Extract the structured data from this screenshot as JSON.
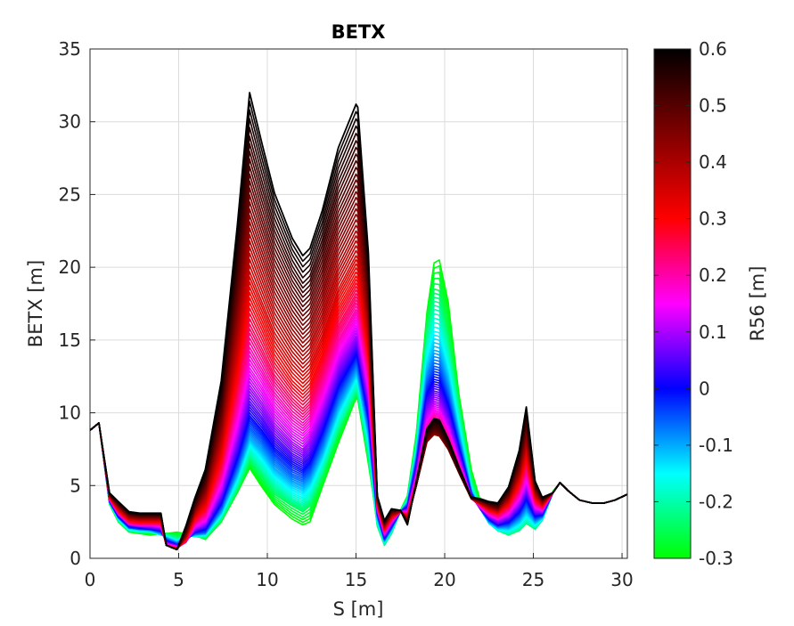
{
  "chart_data": {
    "type": "line",
    "title": "BETX",
    "xlabel": "S [m]",
    "ylabel": "BETX [m]",
    "xlim": [
      0,
      30.3
    ],
    "ylim": [
      0,
      35
    ],
    "xticks": [
      0,
      5,
      10,
      15,
      20,
      25,
      30
    ],
    "yticks": [
      0,
      5,
      10,
      15,
      20,
      25,
      30,
      35
    ],
    "grid": true,
    "colorbar": {
      "label": "R56 [m]",
      "range": [
        -0.3,
        0.6
      ],
      "ticks": [
        -0.3,
        -0.2,
        -0.1,
        0,
        0.1,
        0.2,
        0.3,
        0.4,
        0.5,
        0.6
      ],
      "tick_labels": [
        "-0.3",
        "-0.2",
        "-0.1",
        "0",
        "0.1",
        "0.2",
        "0.3",
        "0.4",
        "0.5",
        "0.6"
      ],
      "colormap": [
        "#00ff00",
        "#00ffff",
        "#0000ff",
        "#ff00ff",
        "#ff0000",
        "#800000",
        "#000000"
      ],
      "placement": "right"
    },
    "s_positions": [
      0,
      0.5,
      1.1,
      1.6,
      2.2,
      2.8,
      3.4,
      4.0,
      4.3,
      4.9,
      5.4,
      5.9,
      6.5,
      7.4,
      8.3,
      9.0,
      9.7,
      10.4,
      11.4,
      12.0,
      12.4,
      13.1,
      14.0,
      15.0,
      15.1,
      15.7,
      16.2,
      16.6,
      17.0,
      17.5,
      17.9,
      18.4,
      19.0,
      19.4,
      19.7,
      20.2,
      20.8,
      21.5,
      22.0,
      22.5,
      23.0,
      23.6,
      24.2,
      24.6,
      25.1,
      25.5,
      26.1,
      26.5,
      27.0,
      27.6,
      28.3,
      29.0,
      29.6,
      30.3
    ],
    "series": [
      {
        "r56": -0.3,
        "values": [
          8.8,
          9.3,
          3.7,
          2.5,
          1.8,
          1.7,
          1.6,
          1.7,
          1.7,
          1.8,
          1.7,
          1.6,
          1.3,
          2.5,
          4.5,
          6.2,
          4.9,
          3.7,
          2.7,
          2.3,
          2.5,
          4.9,
          7.9,
          11.0,
          10.9,
          6.5,
          2.6,
          1.1,
          1.7,
          3.3,
          4.3,
          8.6,
          16.9,
          20.3,
          20.5,
          17.6,
          11.3,
          6.1,
          4.0,
          2.6,
          2.0,
          1.7,
          2.0,
          2.6,
          2.1,
          2.8,
          4.6,
          5.2,
          4.6,
          4.0,
          3.8,
          3.8,
          4.0,
          4.4
        ]
      },
      {
        "r56": -0.25,
        "values": [
          8.8,
          9.3,
          3.8,
          2.6,
          1.9,
          1.8,
          1.8,
          1.7,
          1.7,
          1.5,
          1.6,
          1.5,
          1.4,
          2.6,
          4.7,
          6.7,
          5.6,
          4.4,
          3.6,
          3.2,
          3.6,
          5.6,
          8.7,
          11.3,
          11.1,
          6.9,
          2.2,
          0.9,
          1.7,
          3.2,
          4.2,
          8.1,
          15.9,
          18.5,
          18.4,
          15.3,
          10.5,
          5.4,
          3.6,
          2.4,
          1.9,
          1.6,
          1.9,
          2.4,
          2.0,
          2.6,
          4.5,
          5.2,
          4.6,
          4.0,
          3.8,
          3.8,
          4.0,
          4.4
        ]
      },
      {
        "r56": -0.2,
        "values": [
          8.8,
          9.3,
          3.8,
          2.6,
          1.9,
          1.8,
          1.8,
          1.6,
          1.6,
          1.3,
          1.6,
          1.5,
          1.5,
          2.8,
          5.0,
          7.2,
          6.1,
          5.0,
          4.0,
          3.7,
          4.1,
          6.1,
          9.1,
          11.7,
          11.5,
          7.4,
          2.4,
          1.0,
          1.8,
          3.2,
          4.0,
          7.7,
          14.9,
          17.1,
          17.0,
          14.3,
          9.9,
          5.1,
          3.5,
          2.4,
          1.9,
          1.7,
          2.0,
          2.5,
          2.1,
          2.6,
          4.5,
          5.2,
          4.6,
          4.0,
          3.8,
          3.8,
          4.0,
          4.4
        ]
      },
      {
        "r56": -0.15,
        "values": [
          8.8,
          9.3,
          3.8,
          2.7,
          2.0,
          1.9,
          1.9,
          1.6,
          1.5,
          1.2,
          1.5,
          1.6,
          1.6,
          3.0,
          5.4,
          7.8,
          6.8,
          5.6,
          4.6,
          4.3,
          4.8,
          6.7,
          9.8,
          12.3,
          12.1,
          8.1,
          2.6,
          1.1,
          1.9,
          3.2,
          3.9,
          7.4,
          13.8,
          15.6,
          15.5,
          13.1,
          9.1,
          4.8,
          3.4,
          2.4,
          2.0,
          1.9,
          2.3,
          2.9,
          2.3,
          2.7,
          4.5,
          5.2,
          4.6,
          4.0,
          3.8,
          3.8,
          4.0,
          4.4
        ]
      },
      {
        "r56": -0.1,
        "values": [
          8.8,
          9.3,
          3.9,
          2.8,
          2.1,
          2.0,
          1.9,
          1.7,
          1.4,
          1.1,
          1.4,
          1.6,
          1.7,
          3.2,
          5.8,
          8.3,
          7.4,
          6.2,
          5.2,
          4.9,
          5.4,
          7.3,
          10.4,
          12.8,
          12.6,
          8.6,
          2.8,
          1.2,
          2.0,
          3.2,
          3.8,
          7.0,
          12.8,
          14.3,
          14.2,
          12.1,
          8.5,
          4.6,
          3.4,
          2.5,
          2.1,
          2.1,
          2.6,
          3.3,
          2.5,
          2.8,
          4.5,
          5.2,
          4.6,
          4.0,
          3.8,
          3.8,
          4.0,
          4.4
        ]
      },
      {
        "r56": -0.05,
        "values": [
          8.8,
          9.3,
          3.9,
          2.8,
          2.1,
          2.0,
          2.0,
          1.8,
          1.3,
          1.0,
          1.3,
          1.7,
          1.8,
          3.5,
          6.3,
          9.0,
          8.1,
          6.9,
          5.8,
          5.5,
          6.0,
          8.0,
          11.1,
          13.4,
          13.2,
          9.2,
          3.0,
          1.3,
          2.1,
          3.2,
          3.7,
          6.7,
          12.0,
          13.2,
          13.1,
          11.2,
          8.0,
          4.5,
          3.4,
          2.6,
          2.2,
          2.3,
          2.9,
          3.7,
          2.7,
          2.9,
          4.5,
          5.2,
          4.6,
          4.0,
          3.8,
          3.8,
          4.0,
          4.4
        ]
      },
      {
        "r56": 0.0,
        "values": [
          8.8,
          9.3,
          3.9,
          2.9,
          2.2,
          2.1,
          2.0,
          1.9,
          1.2,
          0.9,
          1.2,
          1.8,
          2.0,
          3.8,
          6.9,
          9.8,
          8.8,
          7.6,
          6.5,
          6.1,
          6.6,
          8.7,
          11.8,
          14.0,
          13.8,
          9.8,
          3.1,
          1.4,
          2.2,
          3.2,
          3.5,
          6.4,
          11.3,
          12.3,
          12.2,
          10.5,
          7.6,
          4.4,
          3.4,
          2.7,
          2.3,
          2.5,
          3.2,
          4.1,
          2.9,
          3.0,
          4.5,
          5.2,
          4.6,
          4.0,
          3.8,
          3.8,
          4.0,
          4.4
        ]
      },
      {
        "r56": 0.05,
        "values": [
          8.8,
          9.3,
          4.0,
          3.0,
          2.3,
          2.2,
          2.1,
          2.0,
          1.1,
          0.9,
          1.2,
          1.9,
          2.2,
          4.2,
          7.6,
          10.8,
          9.7,
          8.4,
          7.2,
          6.8,
          7.3,
          9.4,
          12.5,
          14.6,
          14.4,
          10.4,
          3.2,
          1.5,
          2.3,
          3.2,
          3.4,
          6.1,
          10.6,
          11.5,
          11.4,
          9.8,
          7.2,
          4.3,
          3.4,
          2.8,
          2.4,
          2.7,
          3.5,
          4.5,
          3.1,
          3.1,
          4.5,
          5.2,
          4.6,
          4.0,
          3.8,
          3.8,
          4.0,
          4.4
        ]
      },
      {
        "r56": 0.1,
        "values": [
          8.8,
          9.3,
          4.0,
          3.0,
          2.3,
          2.2,
          2.2,
          2.1,
          1.0,
          0.8,
          1.1,
          2.0,
          2.4,
          4.6,
          8.4,
          11.9,
          10.7,
          9.3,
          8.0,
          7.5,
          8.1,
          10.2,
          13.3,
          15.3,
          15.1,
          11.0,
          3.3,
          1.6,
          2.4,
          3.2,
          3.3,
          5.8,
          10.0,
          10.8,
          10.7,
          9.2,
          6.9,
          4.2,
          3.5,
          2.9,
          2.6,
          2.9,
          3.8,
          4.9,
          3.3,
          3.2,
          4.5,
          5.2,
          4.6,
          4.0,
          3.8,
          3.8,
          4.0,
          4.4
        ]
      },
      {
        "r56": 0.15,
        "values": [
          8.8,
          9.3,
          4.0,
          3.1,
          2.4,
          2.3,
          2.3,
          2.2,
          1.0,
          0.8,
          1.1,
          2.2,
          2.6,
          5.1,
          9.3,
          13.1,
          11.8,
          10.3,
          8.9,
          8.4,
          8.9,
          11.0,
          14.1,
          16.2,
          16.0,
          11.7,
          3.4,
          1.7,
          2.5,
          3.2,
          3.2,
          5.6,
          9.4,
          10.2,
          10.1,
          8.8,
          6.6,
          4.2,
          3.5,
          3.0,
          2.7,
          3.1,
          4.1,
          5.4,
          3.5,
          3.3,
          4.5,
          5.2,
          4.6,
          4.0,
          3.8,
          3.8,
          4.0,
          4.4
        ]
      },
      {
        "r56": 0.2,
        "values": [
          8.8,
          9.3,
          4.1,
          3.1,
          2.4,
          2.3,
          2.3,
          2.3,
          0.9,
          0.7,
          1.1,
          2.3,
          2.9,
          5.6,
          10.3,
          14.5,
          13.0,
          11.4,
          9.9,
          9.3,
          9.8,
          11.9,
          15.0,
          17.1,
          16.9,
          12.4,
          3.5,
          1.8,
          2.6,
          3.2,
          3.1,
          5.4,
          9.0,
          9.7,
          9.6,
          8.4,
          6.4,
          4.1,
          3.6,
          3.1,
          2.8,
          3.3,
          4.4,
          5.9,
          3.7,
          3.4,
          4.5,
          5.2,
          4.6,
          4.0,
          3.8,
          3.8,
          4.0,
          4.4
        ]
      },
      {
        "r56": 0.25,
        "values": [
          8.8,
          9.3,
          4.1,
          3.2,
          2.5,
          2.4,
          2.4,
          2.4,
          0.9,
          0.7,
          1.2,
          2.5,
          3.2,
          6.2,
          11.4,
          16.1,
          14.4,
          12.6,
          11.0,
          10.3,
          10.8,
          12.9,
          16.0,
          18.2,
          18.0,
          13.2,
          3.6,
          1.9,
          2.7,
          3.2,
          3.0,
          5.2,
          8.6,
          9.3,
          9.2,
          8.1,
          6.2,
          4.1,
          3.7,
          3.2,
          3.0,
          3.5,
          4.8,
          6.4,
          3.9,
          3.5,
          4.5,
          5.2,
          4.6,
          4.0,
          3.8,
          3.8,
          4.0,
          4.4
        ]
      },
      {
        "r56": 0.3,
        "values": [
          8.8,
          9.3,
          4.2,
          3.3,
          2.6,
          2.5,
          2.5,
          2.5,
          0.9,
          0.7,
          1.3,
          2.7,
          3.5,
          6.9,
          12.7,
          17.9,
          16.0,
          14.0,
          12.2,
          11.5,
          12.0,
          14.0,
          17.2,
          19.4,
          19.2,
          14.0,
          3.7,
          2.0,
          2.8,
          3.2,
          2.9,
          5.1,
          8.3,
          8.9,
          8.8,
          7.8,
          6.0,
          4.1,
          3.7,
          3.3,
          3.1,
          3.7,
          5.1,
          6.9,
          4.1,
          3.6,
          4.5,
          5.2,
          4.6,
          4.0,
          3.8,
          3.8,
          4.0,
          4.4
        ]
      },
      {
        "r56": 0.35,
        "values": [
          8.8,
          9.3,
          4.2,
          3.4,
          2.7,
          2.6,
          2.6,
          2.6,
          0.9,
          0.6,
          1.4,
          2.9,
          3.9,
          7.6,
          14.0,
          19.7,
          17.6,
          15.5,
          13.6,
          12.8,
          13.3,
          15.3,
          18.5,
          20.8,
          20.6,
          14.9,
          3.8,
          2.1,
          2.9,
          3.2,
          2.8,
          5.0,
          8.1,
          8.6,
          8.5,
          7.6,
          5.9,
          4.1,
          3.8,
          3.4,
          3.2,
          3.9,
          5.5,
          7.5,
          4.3,
          3.7,
          4.5,
          5.2,
          4.6,
          4.0,
          3.8,
          3.8,
          4.0,
          4.4
        ]
      },
      {
        "r56": 0.4,
        "values": [
          8.8,
          9.3,
          4.3,
          3.5,
          2.8,
          2.7,
          2.7,
          2.7,
          0.9,
          0.6,
          1.5,
          3.1,
          4.3,
          8.4,
          15.5,
          21.8,
          19.5,
          17.2,
          15.1,
          14.2,
          14.7,
          16.8,
          20.1,
          22.5,
          22.3,
          15.9,
          3.9,
          2.2,
          3.0,
          3.2,
          2.7,
          5.0,
          8.0,
          8.5,
          8.4,
          7.5,
          5.9,
          4.1,
          3.8,
          3.5,
          3.3,
          4.1,
          5.8,
          8.0,
          4.5,
          3.8,
          4.5,
          5.2,
          4.6,
          4.0,
          3.8,
          3.8,
          4.0,
          4.4
        ]
      },
      {
        "r56": 0.45,
        "values": [
          8.8,
          9.3,
          4.3,
          3.6,
          2.9,
          2.8,
          2.8,
          2.8,
          0.9,
          0.6,
          1.6,
          3.3,
          4.7,
          9.2,
          17.1,
          24.0,
          21.5,
          19.0,
          16.7,
          15.7,
          16.2,
          18.4,
          21.9,
          24.4,
          24.2,
          17.0,
          4.0,
          2.3,
          3.1,
          3.3,
          2.6,
          5.0,
          8.1,
          8.6,
          8.5,
          7.5,
          5.9,
          4.1,
          3.9,
          3.6,
          3.4,
          4.3,
          6.2,
          8.6,
          4.7,
          3.9,
          4.5,
          5.2,
          4.6,
          4.0,
          3.8,
          3.8,
          4.0,
          4.4
        ]
      },
      {
        "r56": 0.5,
        "values": [
          8.8,
          9.3,
          4.4,
          3.7,
          3.0,
          2.9,
          2.9,
          2.9,
          0.9,
          0.6,
          1.8,
          3.5,
          5.1,
          10.1,
          18.8,
          26.4,
          23.6,
          20.9,
          18.4,
          17.3,
          17.8,
          20.1,
          23.8,
          26.4,
          26.2,
          18.2,
          4.1,
          2.4,
          3.2,
          3.3,
          2.5,
          5.1,
          8.3,
          8.8,
          8.7,
          7.6,
          5.9,
          4.1,
          4.0,
          3.7,
          3.5,
          4.5,
          6.6,
          9.2,
          4.9,
          4.0,
          4.5,
          5.2,
          4.6,
          4.0,
          3.8,
          3.8,
          4.0,
          4.4
        ]
      },
      {
        "r56": 0.55,
        "values": [
          8.8,
          9.3,
          4.4,
          3.8,
          3.1,
          3.0,
          3.0,
          3.0,
          0.9,
          0.6,
          2.0,
          3.8,
          5.6,
          11.1,
          20.7,
          29.0,
          25.9,
          22.9,
          20.1,
          18.9,
          19.4,
          21.9,
          25.9,
          28.7,
          28.5,
          19.5,
          4.2,
          2.5,
          3.3,
          3.3,
          2.4,
          5.2,
          8.6,
          9.2,
          9.1,
          7.9,
          6.1,
          4.2,
          4.0,
          3.8,
          3.7,
          4.7,
          7.0,
          9.8,
          5.1,
          4.1,
          4.5,
          5.2,
          4.6,
          4.0,
          3.8,
          3.8,
          4.0,
          4.4
        ]
      },
      {
        "r56": 0.6,
        "values": [
          8.8,
          9.3,
          4.5,
          3.9,
          3.2,
          3.1,
          3.1,
          3.1,
          0.9,
          0.6,
          2.2,
          4.1,
          6.1,
          12.2,
          22.8,
          32.0,
          28.5,
          25.1,
          22.0,
          20.8,
          21.3,
          23.9,
          28.2,
          31.2,
          31.0,
          21.0,
          4.3,
          2.6,
          3.4,
          3.3,
          2.3,
          5.3,
          8.9,
          9.6,
          9.5,
          8.2,
          6.3,
          4.2,
          4.1,
          3.9,
          3.8,
          4.9,
          7.4,
          10.4,
          5.3,
          4.2,
          4.5,
          5.2,
          4.6,
          4.0,
          3.8,
          3.8,
          4.0,
          4.4
        ]
      }
    ]
  }
}
